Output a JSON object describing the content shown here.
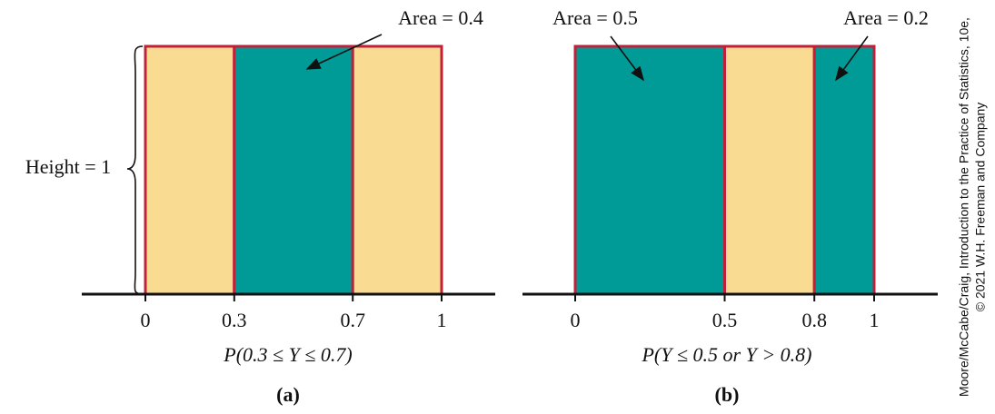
{
  "height_label": "Height = 1",
  "panels": [
    {
      "ticks": [
        0,
        0.3,
        0.7,
        1
      ],
      "fills": [
        "#f9dc92",
        "#009b96",
        "#f9dc92"
      ],
      "annotations": [
        "Area = 0.4"
      ],
      "formula": "P(0.3 ≤ Y ≤ 0.7)",
      "tag": "(a)"
    },
    {
      "ticks": [
        0,
        0.5,
        0.8,
        1
      ],
      "fills": [
        "#009b96",
        "#f9dc92",
        "#009b96"
      ],
      "annotations": [
        "Area = 0.5",
        "Area = 0.2"
      ],
      "formula": "P(Y ≤  0.5 or Y > 0.8)",
      "tag": "(b)"
    }
  ],
  "credit": [
    "Moore/McCabe/Craig, Introduction to the Practice of Statistics, 10e,",
    "© 2021 W.H. Freeman and Company"
  ]
}
